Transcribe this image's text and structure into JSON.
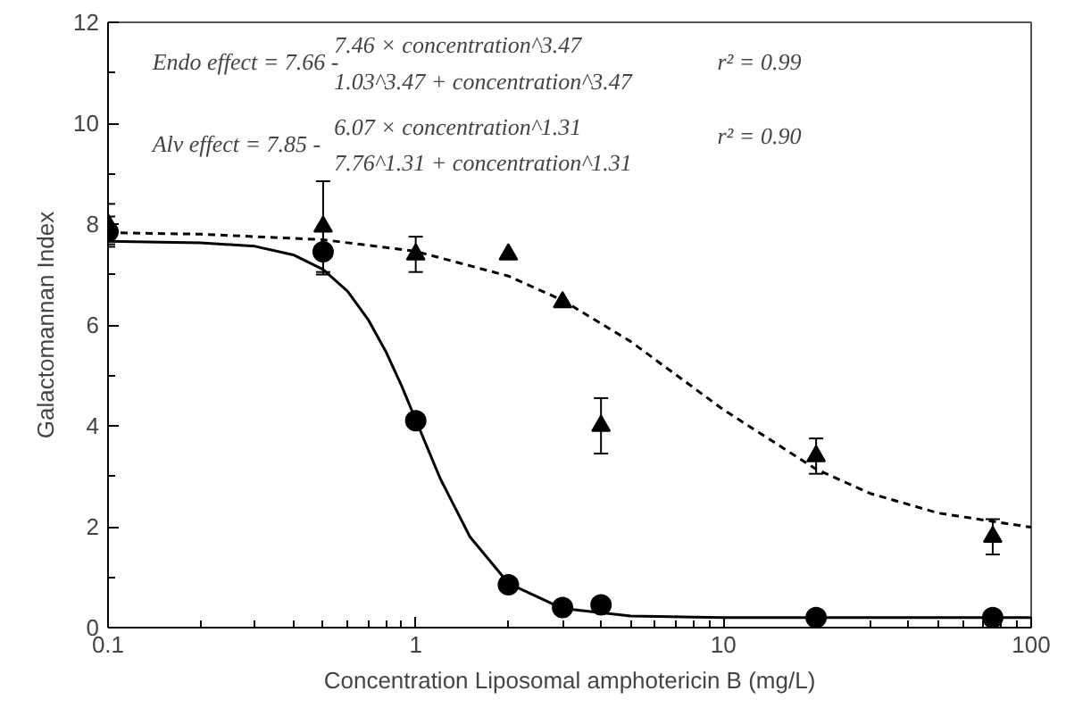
{
  "chart_data": {
    "type": "scatter",
    "xlabel": "Concentration Liposomal amphotericin B (mg/L)",
    "ylabel": "Galactomannan Index",
    "log": "x",
    "xlim": [
      0.1,
      100
    ],
    "xticks": [
      0.1,
      1,
      10,
      100
    ],
    "ylim": [
      0,
      12
    ],
    "yticks": [
      0,
      2,
      4,
      6,
      8,
      10,
      12
    ],
    "grid": false,
    "annotations": [
      "Endo effect = 7.66 -",
      "7.46 × concentration^3.47",
      "1.03^3.47 + concentration^3.47",
      "r² = 0.99",
      "Alv effect = 7.85 -",
      "6.07 × concentration^1.31",
      "7.76^1.31 + concentration^1.31",
      "r² = 0.90"
    ],
    "series": [
      {
        "marker": "circle",
        "color": "#000000",
        "x": [
          0.1,
          0.5,
          1,
          2,
          3,
          4,
          20,
          75
        ],
        "values": [
          7.85,
          7.45,
          4.1,
          0.85,
          0.4,
          0.45,
          0.2,
          0.2
        ],
        "errors": [
          0.3,
          0.45,
          null,
          null,
          null,
          null,
          null,
          null
        ]
      },
      {
        "marker": "triangle",
        "color": "#000000",
        "x": [
          0.1,
          0.5,
          1,
          2,
          3,
          4,
          20,
          75
        ],
        "values": [
          8.0,
          7.95,
          7.4,
          7.4,
          6.45,
          4.0,
          3.4,
          1.8
        ],
        "errors": [
          0.4,
          0.9,
          0.35,
          null,
          null,
          0.55,
          0.35,
          0.35
        ]
      },
      {
        "type": "line",
        "line_style": "solid",
        "color": "#000000",
        "x": [
          0.1,
          0.2,
          0.3,
          0.4,
          0.5,
          0.6,
          0.7,
          0.8,
          0.9,
          1,
          1.2,
          1.5,
          2,
          3,
          5,
          10,
          100
        ],
        "values": [
          7.66,
          7.63,
          7.56,
          7.39,
          7.1,
          6.67,
          6.11,
          5.47,
          4.79,
          4.12,
          2.96,
          1.8,
          0.88,
          0.38,
          0.23,
          0.2,
          0.2
        ]
      },
      {
        "type": "line",
        "line_style": "dashed",
        "color": "#000000",
        "x": [
          0.1,
          0.2,
          0.5,
          1,
          2,
          3,
          5,
          10,
          20,
          30,
          50,
          100
        ],
        "values": [
          7.83,
          7.8,
          7.69,
          7.46,
          6.97,
          6.49,
          5.67,
          4.32,
          3.14,
          2.66,
          2.27,
          1.99
        ]
      }
    ]
  }
}
